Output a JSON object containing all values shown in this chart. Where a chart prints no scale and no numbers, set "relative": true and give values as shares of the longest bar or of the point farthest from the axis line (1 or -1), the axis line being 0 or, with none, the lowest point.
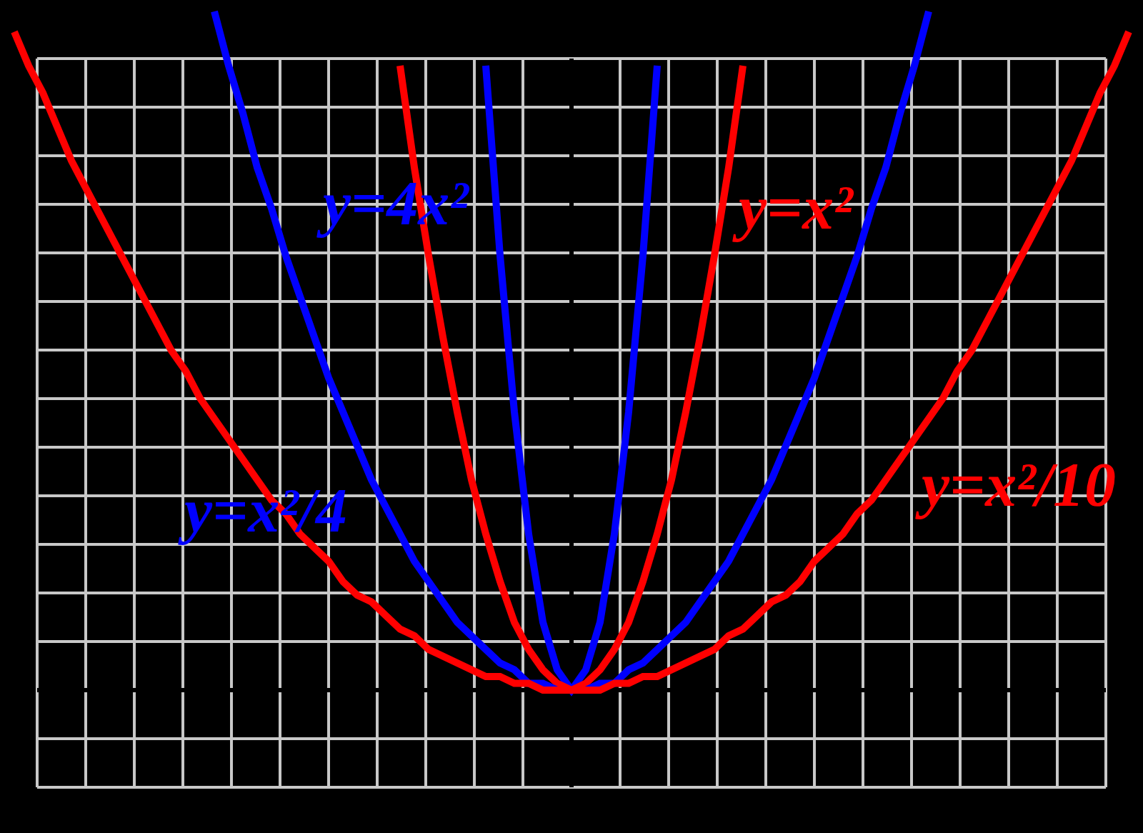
{
  "chart_data": {
    "type": "line",
    "relative": true,
    "grid": true,
    "legend": false,
    "categories": [
      null,
      null,
      null,
      null,
      null,
      null,
      null,
      null,
      null,
      null,
      null,
      null,
      null,
      null,
      null,
      null,
      null,
      null,
      null,
      null,
      null,
      null,
      null,
      null,
      null,
      null,
      null,
      null,
      null,
      null,
      null,
      null,
      null,
      null,
      null,
      null,
      null,
      null,
      null,
      null,
      null,
      null,
      null,
      null,
      null,
      null,
      null,
      null,
      null,
      null,
      null,
      null,
      null,
      null,
      null,
      null,
      null,
      null,
      null,
      null,
      null,
      null,
      null,
      null,
      null,
      null,
      null,
      null,
      null,
      null,
      null,
      null,
      null,
      null,
      null,
      null,
      null,
      null,
      null,
      null,
      null
    ],
    "series": [
      {
        "name": "y=4x²",
        "color": "#0000ff",
        "values": [
          null,
          null,
          null,
          null,
          null,
          null,
          null,
          null,
          null,
          null,
          null,
          null,
          null,
          null,
          null,
          null,
          null,
          null,
          null,
          null,
          null,
          null,
          null,
          null,
          null,
          null,
          null,
          null,
          null,
          null,
          null,
          null,
          null,
          null,
          0.92,
          0.64,
          0.41,
          0.23,
          0.1,
          0.03,
          0,
          0.03,
          0.1,
          0.23,
          0.41,
          0.64,
          0.92,
          null,
          null,
          null,
          null,
          null,
          null,
          null,
          null,
          null,
          null,
          null,
          null,
          null,
          null,
          null,
          null,
          null,
          null,
          null,
          null,
          null,
          null,
          null,
          null,
          null,
          null,
          null,
          null,
          null,
          null,
          null,
          null,
          null,
          null
        ]
      },
      {
        "name": "y=x²",
        "color": "#ff0000",
        "values": [
          null,
          null,
          null,
          null,
          null,
          null,
          null,
          null,
          null,
          null,
          null,
          null,
          null,
          null,
          null,
          null,
          null,
          null,
          null,
          null,
          null,
          null,
          null,
          null,
          null,
          null,
          null,
          null,
          0.92,
          0.77,
          0.64,
          0.52,
          0.41,
          0.31,
          0.23,
          0.16,
          0.1,
          0.06,
          0.03,
          0.01,
          0,
          0.01,
          0.03,
          0.06,
          0.1,
          0.16,
          0.23,
          0.31,
          0.41,
          0.52,
          0.64,
          0.77,
          0.92,
          null,
          null,
          null,
          null,
          null,
          null,
          null,
          null,
          null,
          null,
          null,
          null,
          null,
          null,
          null,
          null,
          null,
          null,
          null,
          null,
          null,
          null,
          null,
          null,
          null,
          null,
          null,
          null
        ]
      },
      {
        "name": "y=x²/4",
        "color": "#0000ff",
        "values": [
          null,
          null,
          null,
          null,
          null,
          null,
          null,
          null,
          null,
          null,
          null,
          null,
          null,
          null,
          null,
          1,
          0.92,
          0.85,
          0.77,
          0.71,
          0.64,
          0.58,
          0.52,
          0.46,
          0.41,
          0.36,
          0.31,
          0.27,
          0.23,
          0.19,
          0.16,
          0.13,
          0.1,
          0.08,
          0.06,
          0.04,
          0.03,
          0.01,
          0.01,
          0,
          0,
          0,
          0.01,
          0.01,
          0.03,
          0.04,
          0.06,
          0.08,
          0.1,
          0.13,
          0.16,
          0.19,
          0.23,
          0.27,
          0.31,
          0.36,
          0.41,
          0.46,
          0.52,
          0.58,
          0.64,
          0.71,
          0.77,
          0.85,
          0.92,
          1,
          null,
          null,
          null,
          null,
          null,
          null,
          null,
          null,
          null,
          null,
          null,
          null,
          null,
          null,
          null
        ]
      },
      {
        "name": "y=x²/10",
        "color": "#ff0000",
        "values": [
          null,
          0.97,
          0.92,
          0.88,
          0.83,
          0.78,
          0.74,
          0.7,
          0.66,
          0.62,
          0.58,
          0.54,
          0.5,
          0.47,
          0.43,
          0.4,
          0.37,
          0.34,
          0.31,
          0.28,
          0.26,
          0.23,
          0.21,
          0.19,
          0.16,
          0.14,
          0.13,
          0.11,
          0.09,
          0.08,
          0.06,
          0.05,
          0.04,
          0.03,
          0.02,
          0.02,
          0.01,
          0.01,
          0,
          0,
          0,
          0,
          0,
          0.01,
          0.01,
          0.02,
          0.02,
          0.03,
          0.04,
          0.05,
          0.06,
          0.08,
          0.09,
          0.11,
          0.13,
          0.14,
          0.16,
          0.19,
          0.21,
          0.23,
          0.26,
          0.28,
          0.31,
          0.34,
          0.37,
          0.4,
          0.43,
          0.47,
          0.5,
          0.54,
          0.58,
          0.62,
          0.66,
          0.7,
          0.74,
          0.78,
          0.83,
          0.88,
          0.92,
          0.97,
          null
        ]
      }
    ]
  }
}
